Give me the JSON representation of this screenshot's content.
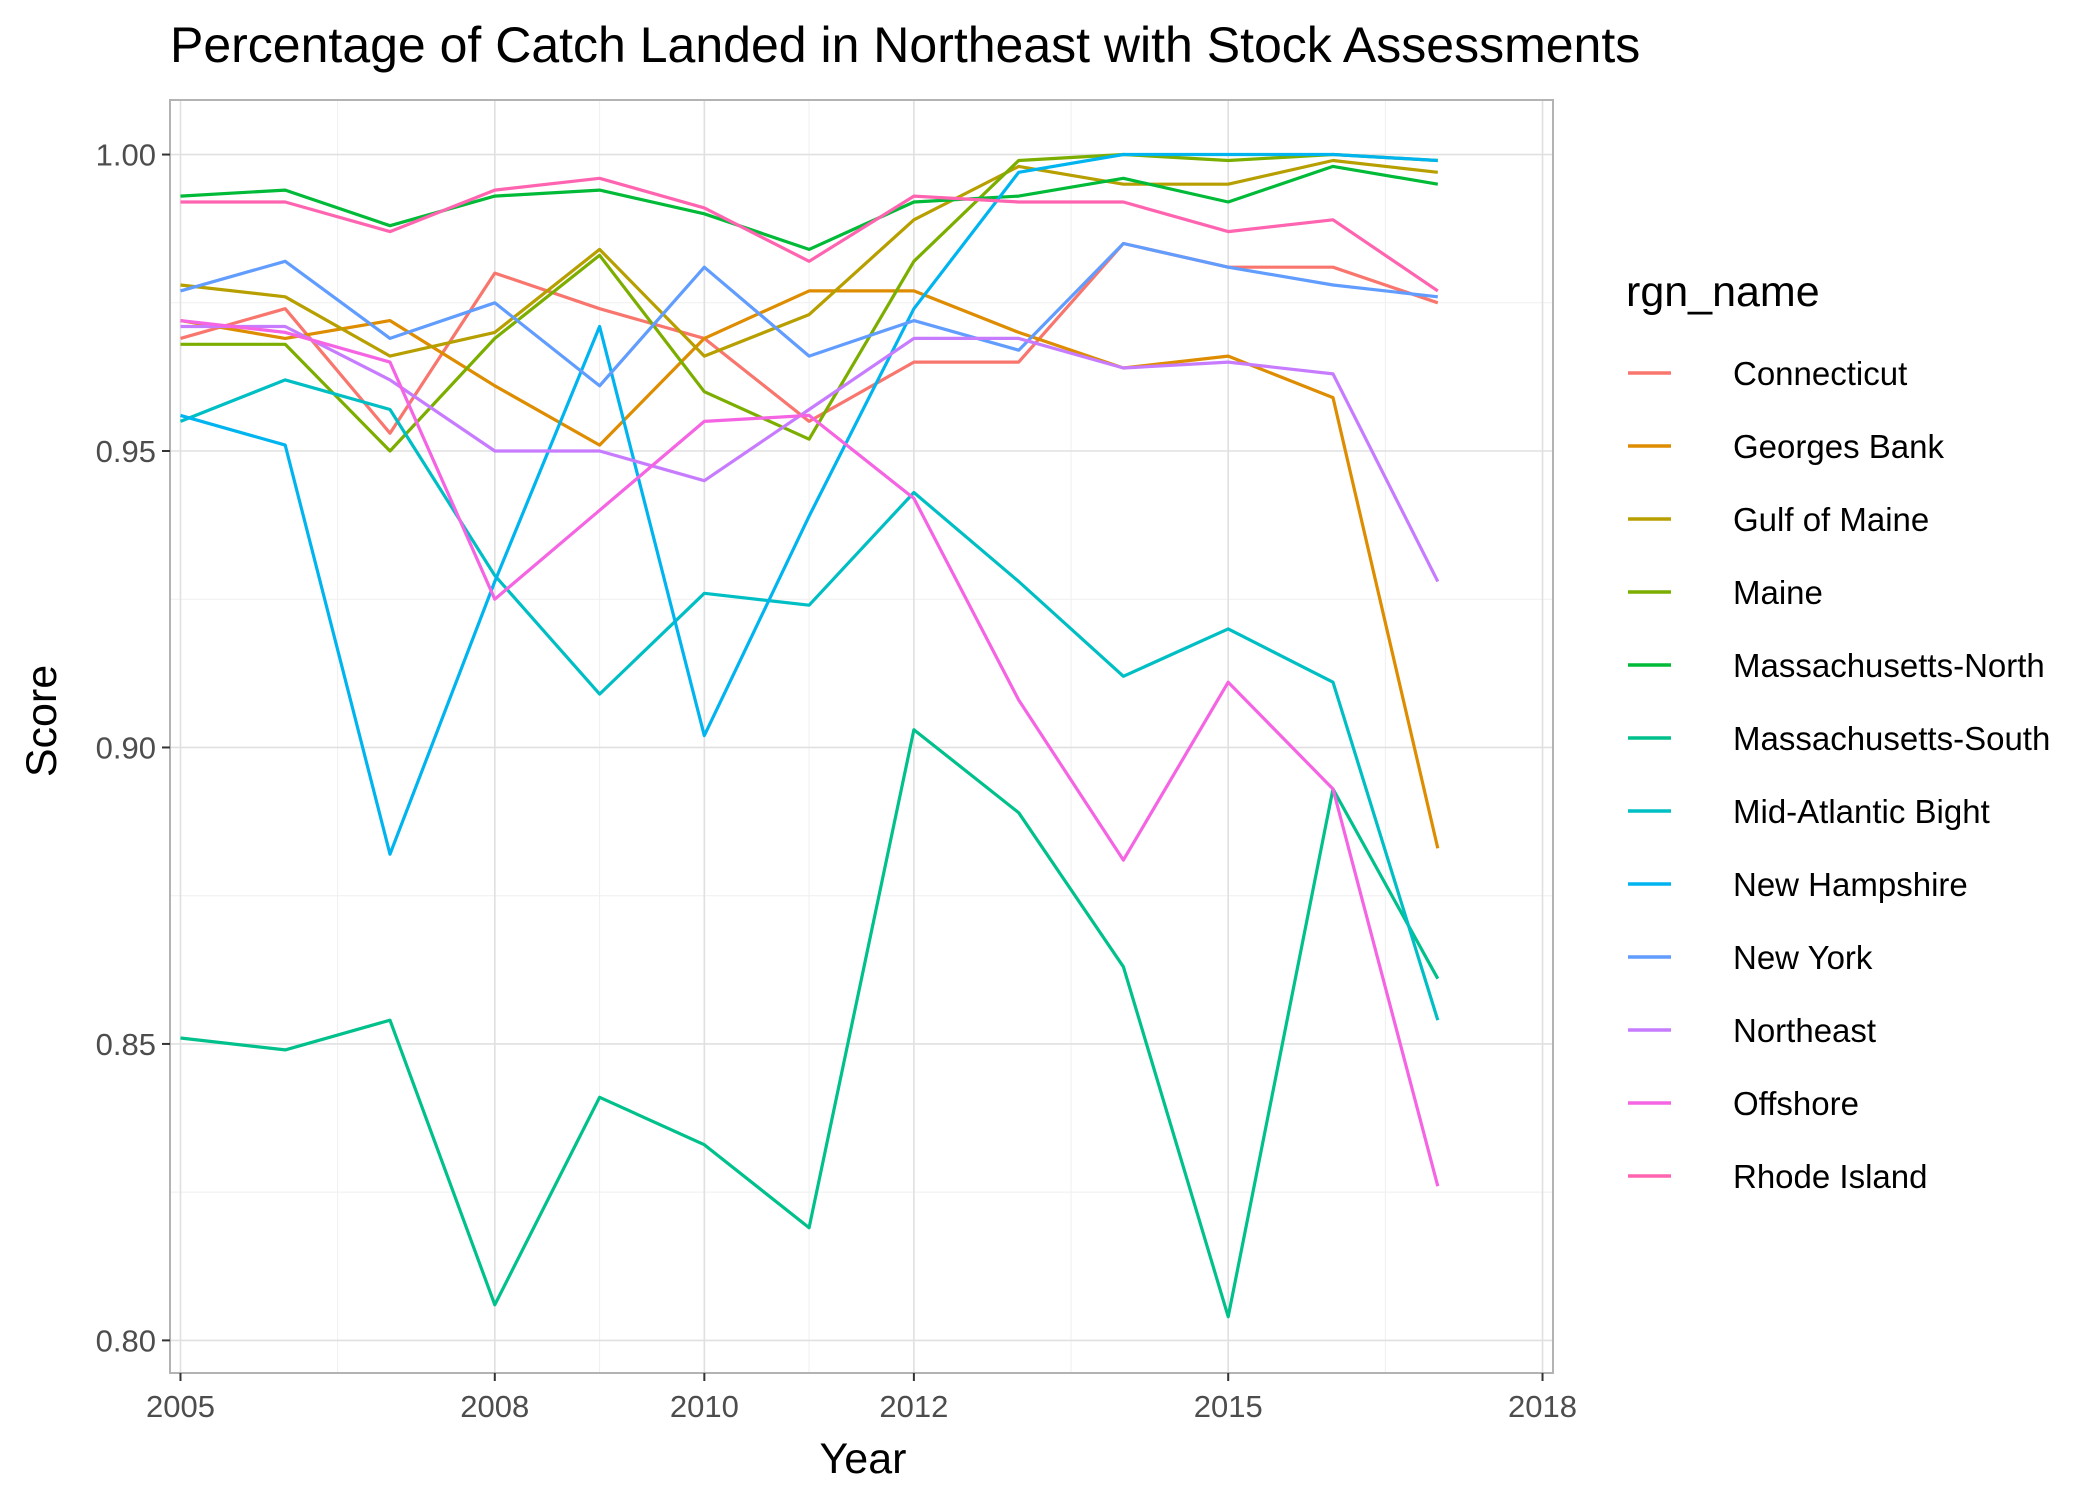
{
  "chart_data": {
    "type": "line",
    "title": "Percentage of Catch Landed in Northeast with Stock Assessments",
    "xlabel": "Year",
    "ylabel": "Score",
    "xlim": [
      2004.9,
      2018.1
    ],
    "ylim": [
      0.7945,
      1.0092
    ],
    "x_ticks": [
      2005,
      2008,
      2010,
      2012,
      2015,
      2018
    ],
    "y_ticks": [
      0.8,
      0.85,
      0.9,
      0.95,
      1.0
    ],
    "y_tick_labels": [
      "0.80",
      "0.85",
      "0.90",
      "0.95",
      "1.00"
    ],
    "grid": true,
    "legend_title": "rgn_name",
    "legend_position": "right",
    "x": [
      2005,
      2006,
      2007,
      2008,
      2009,
      2010,
      2011,
      2012,
      2013,
      2014,
      2015,
      2016,
      2017
    ],
    "series": [
      {
        "name": "Connecticut",
        "color": "#F8766D",
        "values": [
          0.969,
          0.974,
          0.953,
          0.98,
          0.974,
          0.969,
          0.955,
          0.965,
          0.965,
          0.985,
          0.981,
          0.981,
          0.975
        ]
      },
      {
        "name": "Georges Bank",
        "color": "#DE8C00",
        "values": [
          0.972,
          0.969,
          0.972,
          0.961,
          0.951,
          0.969,
          0.977,
          0.977,
          0.97,
          0.964,
          0.966,
          0.959,
          0.883
        ]
      },
      {
        "name": "Gulf of Maine",
        "color": "#B79F00",
        "values": [
          0.978,
          0.976,
          0.966,
          0.97,
          0.984,
          0.966,
          0.973,
          0.989,
          0.998,
          0.995,
          0.995,
          0.999,
          0.997
        ]
      },
      {
        "name": "Maine",
        "color": "#7CAE00",
        "values": [
          0.968,
          0.968,
          0.95,
          0.969,
          0.983,
          0.96,
          0.952,
          0.982,
          0.999,
          1.0,
          0.999,
          1.0,
          0.999
        ]
      },
      {
        "name": "Massachusetts-North",
        "color": "#00BA38",
        "values": [
          0.993,
          0.994,
          0.988,
          0.993,
          0.994,
          0.99,
          0.984,
          0.992,
          0.993,
          0.996,
          0.992,
          0.998,
          0.995
        ]
      },
      {
        "name": "Massachusetts-South",
        "color": "#00C08B",
        "values": [
          0.851,
          0.849,
          0.854,
          0.806,
          0.841,
          0.833,
          0.819,
          0.903,
          0.889,
          0.863,
          0.804,
          0.893,
          0.861
        ]
      },
      {
        "name": "Mid-Atlantic Bight",
        "color": "#00BFC4",
        "values": [
          0.955,
          0.962,
          0.957,
          0.929,
          0.909,
          0.926,
          0.924,
          0.943,
          0.928,
          0.912,
          0.92,
          0.911,
          0.854
        ]
      },
      {
        "name": "New Hampshire",
        "color": "#00B4F0",
        "values": [
          0.956,
          0.951,
          0.882,
          0.928,
          0.971,
          0.902,
          0.939,
          0.974,
          0.997,
          1.0,
          1.0,
          1.0,
          0.999
        ]
      },
      {
        "name": "New York",
        "color": "#619CFF",
        "values": [
          0.977,
          0.982,
          0.969,
          0.975,
          0.961,
          0.981,
          0.966,
          0.972,
          0.967,
          0.985,
          0.981,
          0.978,
          0.976
        ]
      },
      {
        "name": "Northeast",
        "color": "#C77CFF",
        "values": [
          0.971,
          0.971,
          0.962,
          0.95,
          0.95,
          0.945,
          0.957,
          0.969,
          0.969,
          0.964,
          0.965,
          0.963,
          0.928
        ]
      },
      {
        "name": "Offshore",
        "color": "#F564E3",
        "values": [
          0.972,
          0.97,
          0.965,
          0.925,
          0.94,
          0.955,
          0.956,
          0.942,
          0.908,
          0.881,
          0.911,
          0.893,
          0.826
        ]
      },
      {
        "name": "Rhode Island",
        "color": "#FF64B0",
        "values": [
          0.992,
          0.992,
          0.987,
          0.994,
          0.996,
          0.991,
          0.982,
          0.993,
          0.992,
          0.992,
          0.987,
          0.989,
          0.977
        ]
      }
    ]
  }
}
